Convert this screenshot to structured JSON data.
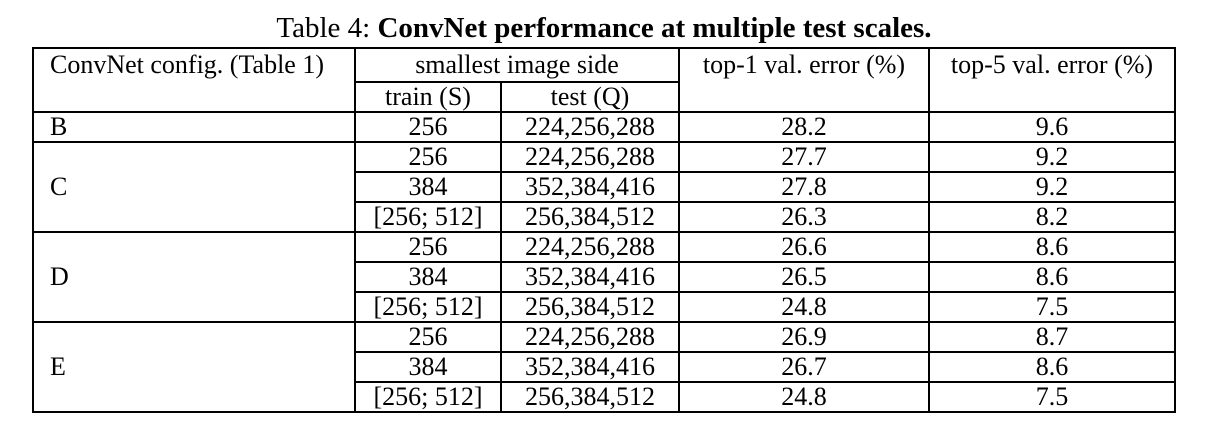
{
  "caption": {
    "prefix": "Table 4: ",
    "title": "ConvNet performance at multiple test scales."
  },
  "headers": {
    "config": "ConvNet config. (Table 1)",
    "smallest_side": "smallest image side",
    "train": "train (S)",
    "test": "test (Q)",
    "top1": "top-1 val. error (%)",
    "top5": "top-5 val. error (%)"
  },
  "groups": [
    {
      "config": "B",
      "rows": [
        {
          "train": "256",
          "test": "224,256,288",
          "top1": "28.2",
          "top5": "9.6"
        }
      ]
    },
    {
      "config": "C",
      "rows": [
        {
          "train": "256",
          "test": "224,256,288",
          "top1": "27.7",
          "top5": "9.2"
        },
        {
          "train": "384",
          "test": "352,384,416",
          "top1": "27.8",
          "top5": "9.2"
        },
        {
          "train": "[256; 512]",
          "test": "256,384,512",
          "top1": "26.3",
          "top5": "8.2"
        }
      ]
    },
    {
      "config": "D",
      "rows": [
        {
          "train": "256",
          "test": "224,256,288",
          "top1": "26.6",
          "top5": "8.6"
        },
        {
          "train": "384",
          "test": "352,384,416",
          "top1": "26.5",
          "top5": "8.6"
        },
        {
          "train": "[256; 512]",
          "test": "256,384,512",
          "top1": "24.8",
          "top5": "7.5",
          "bold": true
        }
      ]
    },
    {
      "config": "E",
      "rows": [
        {
          "train": "256",
          "test": "224,256,288",
          "top1": "26.9",
          "top5": "8.7"
        },
        {
          "train": "384",
          "test": "352,384,416",
          "top1": "26.7",
          "top5": "8.6"
        },
        {
          "train": "[256; 512]",
          "test": "256,384,512",
          "top1": "24.8",
          "top5": "7.5",
          "bold": true
        }
      ]
    }
  ]
}
